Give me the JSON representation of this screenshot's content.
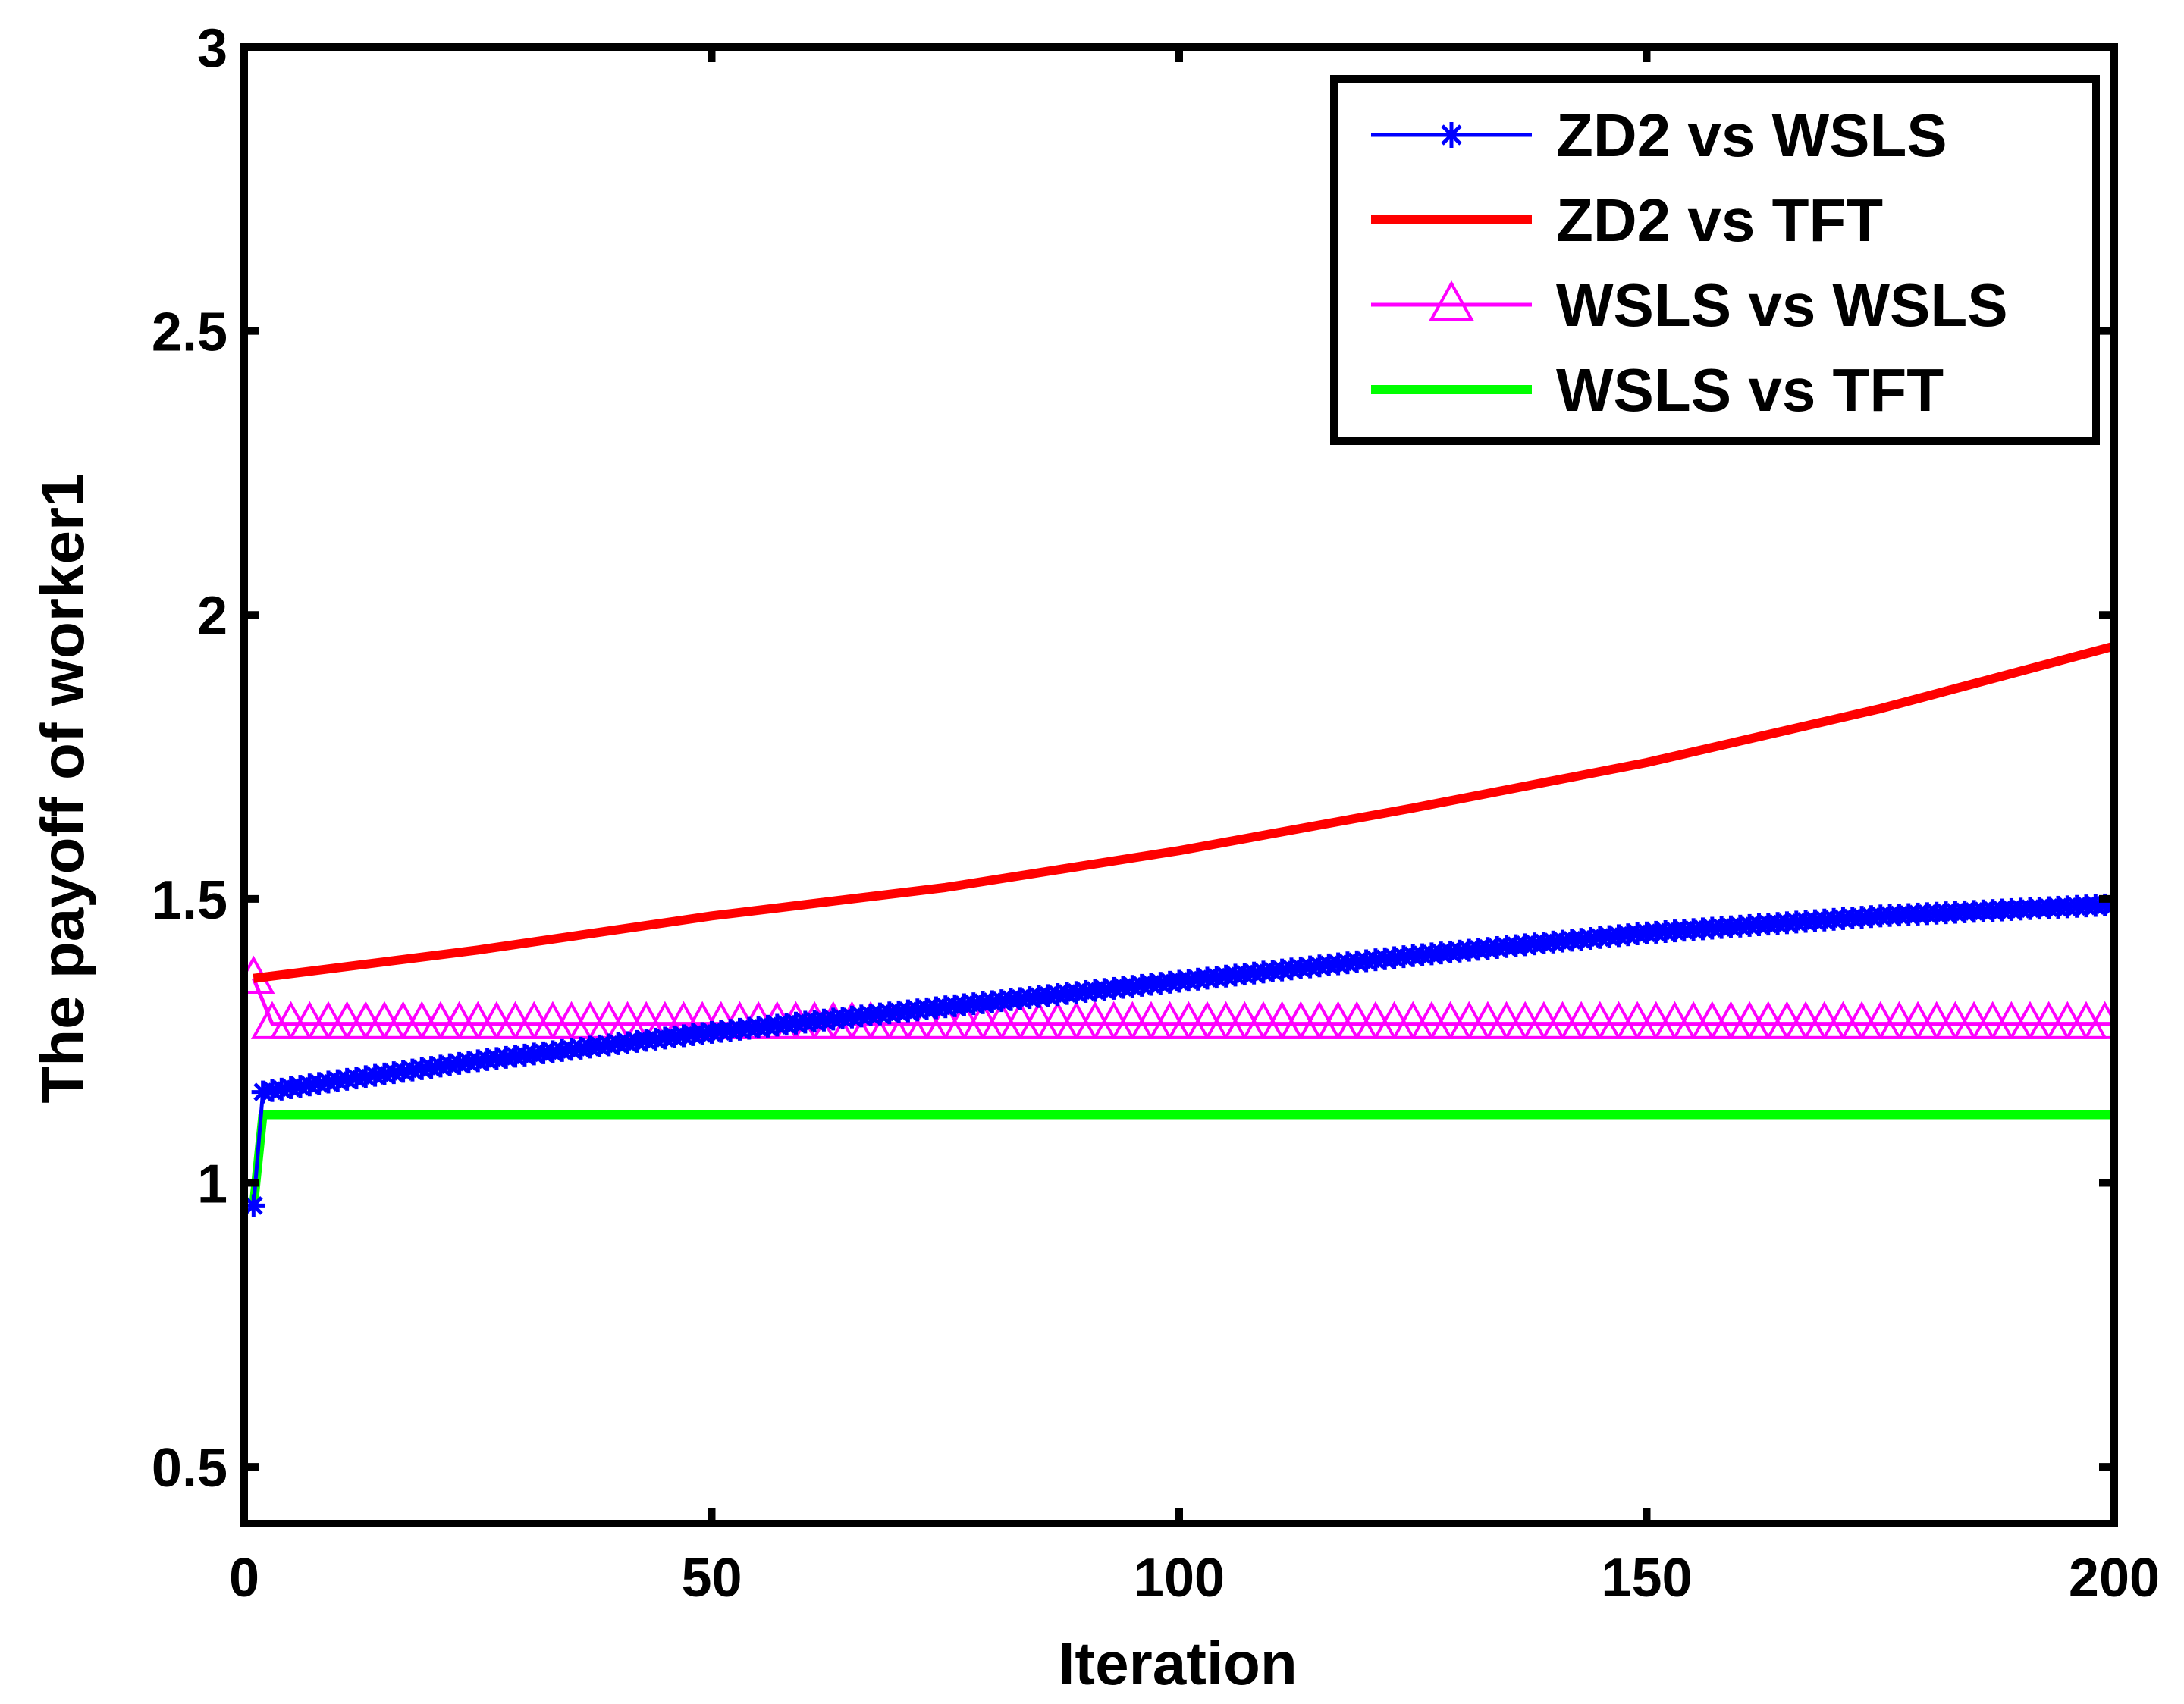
{
  "chart_data": {
    "type": "line",
    "title": "",
    "xlabel": "Iteration",
    "ylabel": "The payoff of worker1",
    "xlim": [
      0,
      200
    ],
    "ylim": [
      0.4,
      3
    ],
    "xticks": [
      0,
      50,
      100,
      150,
      200
    ],
    "xtick_labels": [
      "0",
      "50",
      "100",
      "150",
      "200"
    ],
    "yticks": [
      0.5,
      1,
      1.5,
      2,
      2.5,
      3
    ],
    "ytick_labels": [
      "0.5",
      "1",
      "1.5",
      "2",
      "2.5",
      "3"
    ],
    "grid": false,
    "legend_position": "top-right",
    "series": [
      {
        "name": "ZD2 vs WSLS",
        "color": "#0000ff",
        "marker": "asterisk",
        "x": [
          1,
          2,
          10,
          25,
          50,
          75,
          100,
          125,
          150,
          175,
          200
        ],
        "y": [
          0.96,
          1.16,
          1.18,
          1.215,
          1.265,
          1.31,
          1.355,
          1.4,
          1.44,
          1.47,
          1.49
        ]
      },
      {
        "name": "ZD2 vs TFT",
        "color": "#ff0000",
        "marker": "none",
        "x": [
          1,
          25,
          50,
          75,
          100,
          125,
          150,
          175,
          200
        ],
        "y": [
          1.36,
          1.41,
          1.47,
          1.52,
          1.585,
          1.66,
          1.74,
          1.835,
          1.945
        ]
      },
      {
        "name": "WSLS vs WSLS",
        "color": "#ff00ff",
        "marker": "triangle",
        "x": [
          1,
          3,
          200
        ],
        "y": [
          1.36,
          1.28,
          1.28
        ]
      },
      {
        "name": "WSLS vs TFT",
        "color": "#00ff00",
        "marker": "none",
        "x": [
          1,
          2,
          200
        ],
        "y": [
          0.96,
          1.12,
          1.12
        ]
      }
    ]
  }
}
